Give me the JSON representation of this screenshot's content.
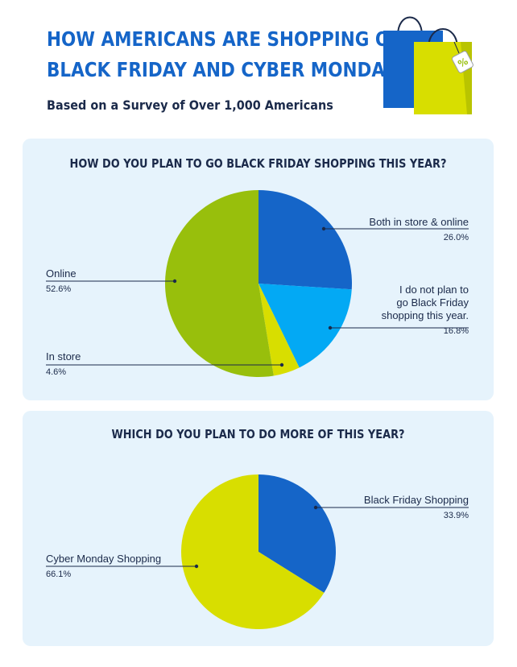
{
  "header": {
    "title_line1": "HOW AMERICANS ARE SHOPPING ON",
    "title_line2": "BLACK FRIDAY AND CYBER MONDAY",
    "subtitle": "Based on a Survey of Over 1,000 Americans",
    "bag_tag": "%"
  },
  "colors": {
    "dark_blue": "#1565c8",
    "light_blue": "#03a9f4",
    "green": "#98bf0c",
    "yellow": "#d8de00",
    "panel_bg": "#e6f3fc",
    "text": "#1b2a4a"
  },
  "chart_data": [
    {
      "type": "pie",
      "title": "HOW DO YOU PLAN TO GO BLACK FRIDAY SHOPPING THIS YEAR?",
      "slices": [
        {
          "label": "Both in store & online",
          "value": 26.0,
          "display": "26.0%",
          "color": "#1565c8"
        },
        {
          "label": "I do not plan to go Black Friday shopping this year.",
          "label_lines": [
            "I do not plan to",
            "go Black Friday",
            "shopping this year."
          ],
          "value": 16.8,
          "display": "16.8%",
          "color": "#03a9f4"
        },
        {
          "label": "In store",
          "value": 4.6,
          "display": "4.6%",
          "color": "#d8de00"
        },
        {
          "label": "Online",
          "value": 52.6,
          "display": "52.6%",
          "color": "#98bf0c"
        }
      ]
    },
    {
      "type": "pie",
      "title": "WHICH DO YOU PLAN TO DO MORE OF THIS YEAR?",
      "slices": [
        {
          "label": "Black Friday Shopping",
          "value": 33.9,
          "display": "33.9%",
          "color": "#1565c8"
        },
        {
          "label": "Cyber Monday Shopping",
          "value": 66.1,
          "display": "66.1%",
          "color": "#d8de00"
        }
      ]
    }
  ]
}
